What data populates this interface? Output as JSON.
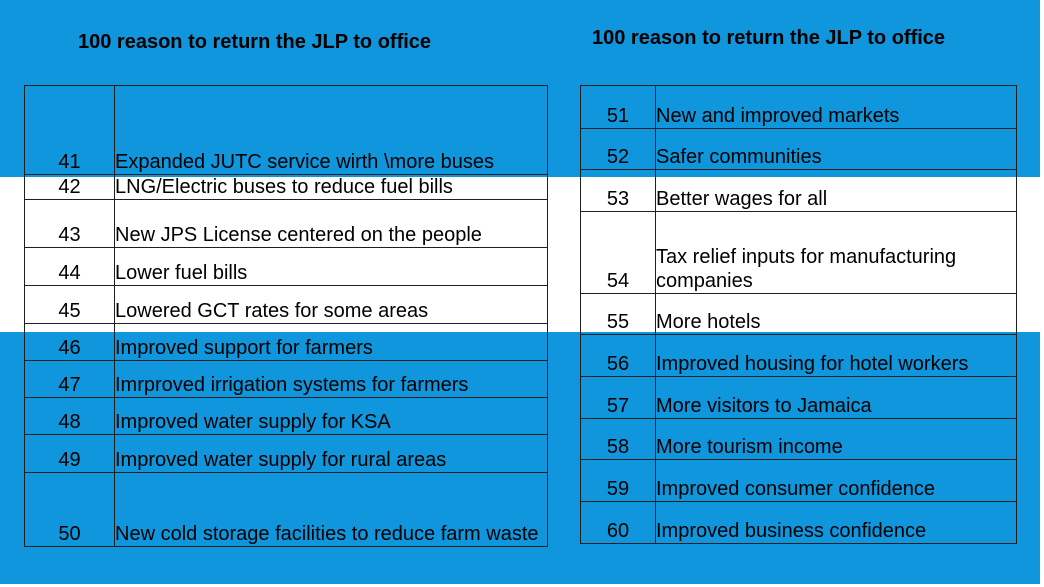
{
  "slide": {
    "colors": {
      "band_blue": "#0f96dc",
      "band_white": "#ffffff",
      "border": "#1f1f1f"
    },
    "left_title": "100 reason to return the JLP to office",
    "right_title": "100 reason to return the JLP to office",
    "left_items": [
      {
        "number": "41",
        "text": "Expanded JUTC service wirth \\more buses"
      },
      {
        "number": "42",
        "text": "LNG/Electric buses to reduce fuel bills"
      },
      {
        "number": "43",
        "text": "New JPS License centered on the people"
      },
      {
        "number": "44",
        "text": "Lower fuel bills"
      },
      {
        "number": "45",
        "text": "Lowered GCT rates for some areas"
      },
      {
        "number": "46",
        "text": "Improved support for farmers"
      },
      {
        "number": "47",
        "text": "Imrproved irrigation systems for farmers"
      },
      {
        "number": "48",
        "text": "Improved water supply for KSA"
      },
      {
        "number": "49",
        "text": "Improved water supply for rural areas"
      },
      {
        "number": "50",
        "text": "New cold storage facilities to reduce farm waste"
      }
    ],
    "right_items": [
      {
        "number": "51",
        "text": "New and improved markets"
      },
      {
        "number": "52",
        "text": "Safer communities"
      },
      {
        "number": "53",
        "text": "Better wages for all"
      },
      {
        "number": "54",
        "text": "Tax relief inputs for manufacturing companies"
      },
      {
        "number": "55",
        "text": "More hotels"
      },
      {
        "number": "56",
        "text": "Improved housing for hotel workers"
      },
      {
        "number": "57",
        "text": "More visitors to Jamaica"
      },
      {
        "number": "58",
        "text": "More tourism income"
      },
      {
        "number": "59",
        "text": "Improved consumer confidence"
      },
      {
        "number": "60",
        "text": "Improved business confidence"
      }
    ]
  }
}
